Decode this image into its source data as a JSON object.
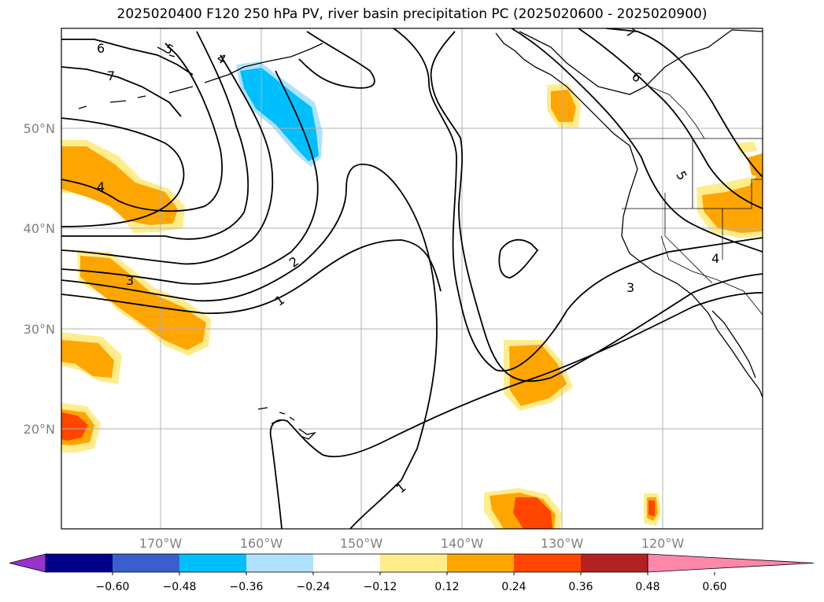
{
  "title": "2025020400 F120 250 hPa PV, river basin precipitation PC (2025020600 - 2025020900)",
  "map": {
    "lat_labels": [
      "50°N",
      "40°N",
      "30°N",
      "20°N"
    ],
    "lon_labels": [
      "170°W",
      "160°W",
      "150°W",
      "140°W",
      "130°W",
      "120°W"
    ],
    "contour_labels": [
      "6",
      "7",
      "5",
      "4",
      "4",
      "3",
      "2",
      "1",
      "1",
      "3",
      "4",
      "5",
      "6",
      "7"
    ]
  },
  "colorbar": {
    "ticks": [
      "−0.60",
      "−0.48",
      "−0.36",
      "−0.24",
      "−0.12",
      "0.12",
      "0.24",
      "0.36",
      "0.48",
      "0.60"
    ],
    "colors": [
      "#9933cc",
      "#00008b",
      "#3a5fcd",
      "#00bfff",
      "#b0e2ff",
      "#ffffff",
      "#ffec8b",
      "#ffa500",
      "#ff4500",
      "#b22222",
      "#ff88aa"
    ]
  }
}
